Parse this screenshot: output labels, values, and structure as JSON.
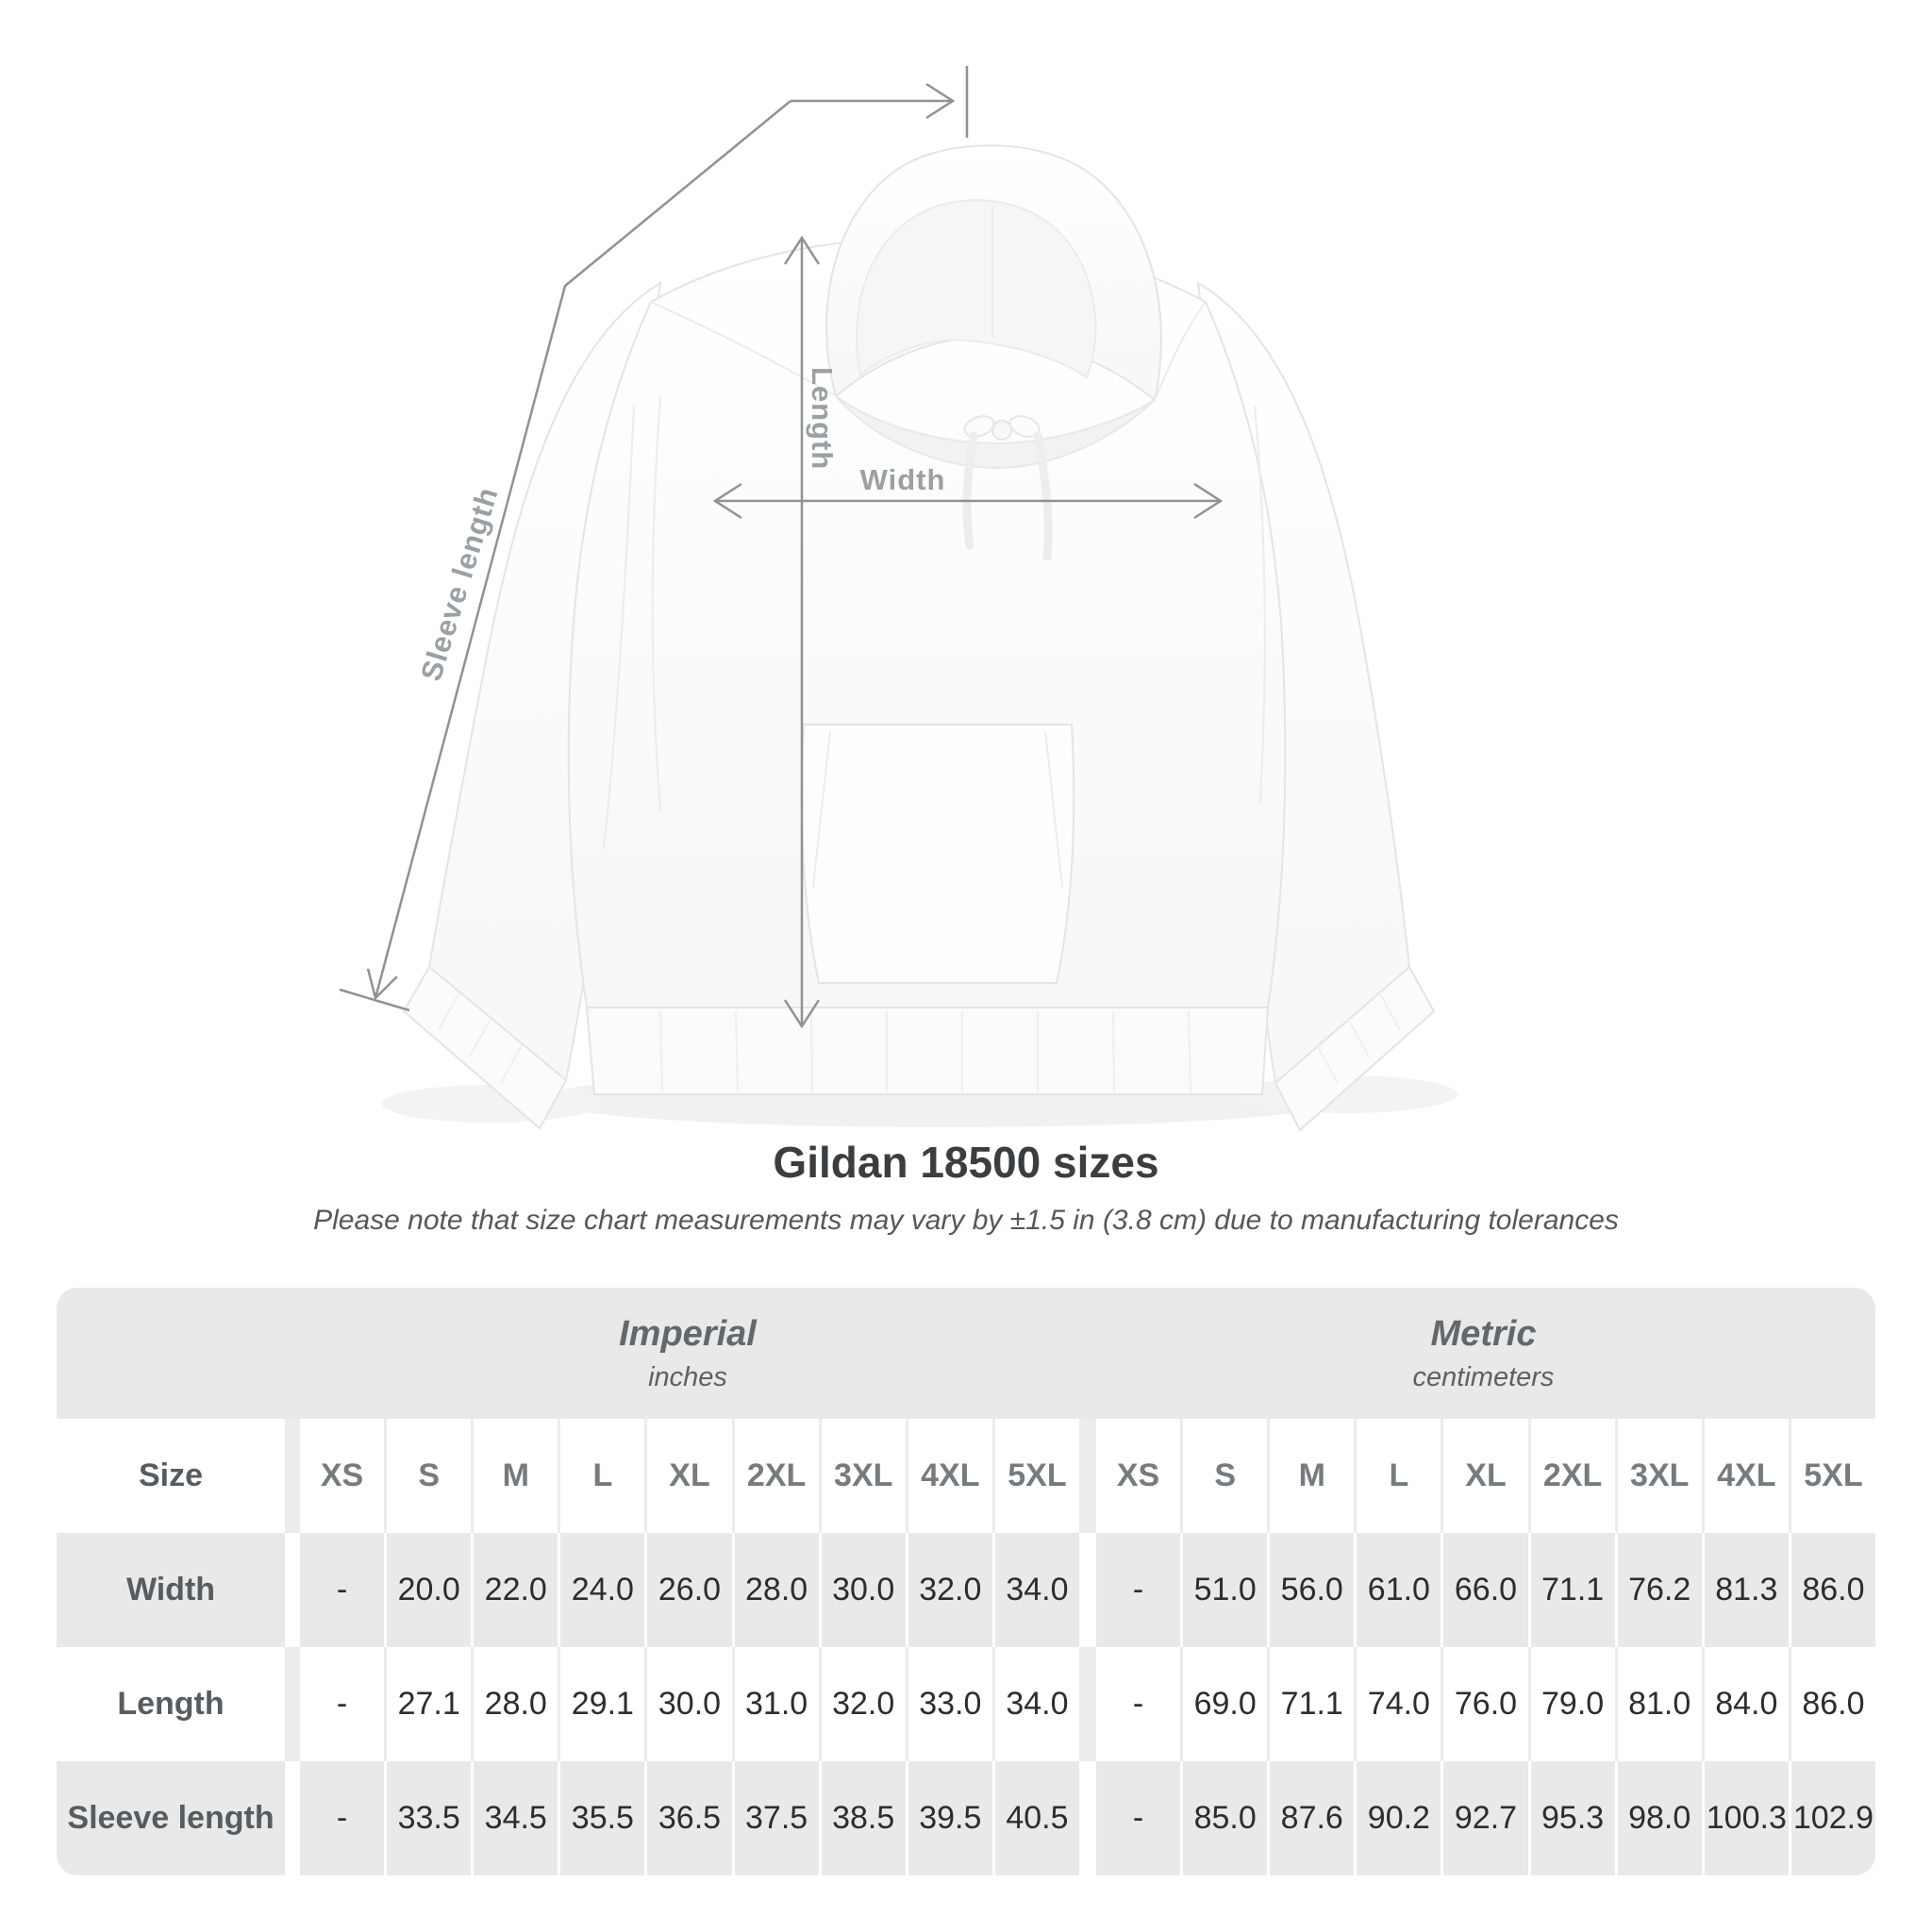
{
  "diagram": {
    "labels": {
      "length": "Length",
      "width": "Width",
      "sleeve": "Sleeve length"
    }
  },
  "title": "Gildan 18500 sizes",
  "subtitle": "Please note that size chart measurements may vary by ±1.5 in (3.8 cm) due to manufacturing tolerances",
  "table": {
    "groups": [
      {
        "label": "Imperial",
        "sublabel": "inches"
      },
      {
        "label": "Metric",
        "sublabel": "centimeters"
      }
    ],
    "size_header": "Size",
    "sizes": [
      "XS",
      "S",
      "M",
      "L",
      "XL",
      "2XL",
      "3XL",
      "4XL",
      "5XL"
    ],
    "rows": [
      {
        "label": "Width",
        "imperial": [
          "-",
          "20.0",
          "22.0",
          "24.0",
          "26.0",
          "28.0",
          "30.0",
          "32.0",
          "34.0"
        ],
        "metric": [
          "-",
          "51.0",
          "56.0",
          "61.0",
          "66.0",
          "71.1",
          "76.2",
          "81.3",
          "86.0"
        ]
      },
      {
        "label": "Length",
        "imperial": [
          "-",
          "27.1",
          "28.0",
          "29.1",
          "30.0",
          "31.0",
          "32.0",
          "33.0",
          "34.0"
        ],
        "metric": [
          "-",
          "69.0",
          "71.1",
          "74.0",
          "76.0",
          "79.0",
          "81.0",
          "84.0",
          "86.0"
        ]
      },
      {
        "label": "Sleeve length",
        "imperial": [
          "-",
          "33.5",
          "34.5",
          "35.5",
          "36.5",
          "37.5",
          "38.5",
          "39.5",
          "40.5"
        ],
        "metric": [
          "-",
          "85.0",
          "87.6",
          "90.2",
          "92.7",
          "95.3",
          "98.0",
          "100.3",
          "102.9"
        ]
      }
    ]
  },
  "colors": {
    "table_band": "#e9e9e9",
    "dimension_line": "#8f9295",
    "dimension_label": "#9aa0a3",
    "value_text": "#2c2d2e",
    "header_text": "#565c60"
  }
}
